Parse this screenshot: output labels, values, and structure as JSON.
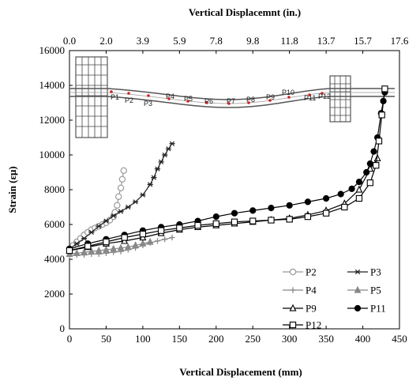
{
  "chart_data": {
    "type": "line",
    "title": "",
    "xlabel": "Vertical Displacement (mm)",
    "x2label": "Vertical Displacemnt  (in.)",
    "ylabel": "Strain (εμ)",
    "xlim": [
      0,
      450
    ],
    "ylim": [
      0,
      16000
    ],
    "xticks": [
      "0",
      "50",
      "100",
      "150",
      "200",
      "250",
      "300",
      "350",
      "400",
      "450"
    ],
    "yticks": [
      "0",
      "2000",
      "4000",
      "6000",
      "8000",
      "10000",
      "12000",
      "14000",
      "16000"
    ],
    "x2ticks": [
      "0.0",
      "2.0",
      "3.9",
      "5.9",
      "7.8",
      "9.8",
      "11.8",
      "13.7",
      "15.7",
      "17.6"
    ],
    "grid": false,
    "legend_position": "bottom-right",
    "series": [
      {
        "name": "P2",
        "marker": "circle-open",
        "color": "#999999",
        "x": [
          0,
          5,
          10,
          15,
          20,
          25,
          30,
          35,
          40,
          45,
          50,
          55,
          60,
          62,
          65,
          67,
          70,
          72,
          74
        ],
        "y": [
          4600,
          4800,
          5000,
          5200,
          5400,
          5550,
          5700,
          5800,
          5900,
          6000,
          6100,
          6250,
          6450,
          6700,
          7100,
          7600,
          8100,
          8600,
          9100
        ]
      },
      {
        "name": "P3",
        "marker": "star",
        "color": "#222222",
        "x": [
          0,
          10,
          20,
          30,
          40,
          50,
          60,
          70,
          80,
          90,
          100,
          110,
          115,
          120,
          125,
          130,
          135,
          140
        ],
        "y": [
          4600,
          4900,
          5200,
          5550,
          5900,
          6200,
          6500,
          6750,
          7000,
          7300,
          7700,
          8300,
          8700,
          9200,
          9600,
          10000,
          10350,
          10650
        ]
      },
      {
        "name": "P4",
        "marker": "plus",
        "color": "#888888",
        "x": [
          0,
          10,
          20,
          30,
          40,
          50,
          60,
          70,
          80,
          90,
          100,
          110,
          120,
          130,
          140
        ],
        "y": [
          4200,
          4250,
          4250,
          4300,
          4300,
          4350,
          4400,
          4450,
          4550,
          4650,
          4800,
          4950,
          5050,
          5150,
          5250
        ]
      },
      {
        "name": "P5",
        "marker": "triangle-filled",
        "color": "#888888",
        "x": [
          0,
          10,
          20,
          30,
          40,
          50,
          60,
          70,
          80,
          90,
          100,
          110
        ],
        "y": [
          4300,
          4350,
          4400,
          4450,
          4500,
          4550,
          4600,
          4650,
          4700,
          4800,
          4900,
          5000
        ]
      },
      {
        "name": "P9",
        "marker": "triangle-open",
        "color": "#000000",
        "x": [
          0,
          25,
          50,
          75,
          100,
          125,
          150,
          175,
          200,
          225,
          250,
          275,
          300,
          325,
          350,
          375,
          395,
          410,
          420
        ],
        "y": [
          4500,
          4700,
          4900,
          5050,
          5250,
          5500,
          5700,
          5850,
          5950,
          6050,
          6150,
          6250,
          6350,
          6550,
          6800,
          7200,
          8000,
          9200,
          9800
        ]
      },
      {
        "name": "P11",
        "marker": "circle-filled",
        "color": "#000000",
        "x": [
          0,
          25,
          50,
          75,
          100,
          125,
          150,
          175,
          200,
          225,
          250,
          275,
          300,
          325,
          350,
          370,
          385,
          395,
          405,
          410,
          415,
          420,
          425,
          428,
          430
        ],
        "y": [
          4600,
          4900,
          5150,
          5400,
          5650,
          5850,
          6000,
          6200,
          6450,
          6650,
          6800,
          6950,
          7100,
          7300,
          7500,
          7750,
          8050,
          8450,
          9000,
          9500,
          10200,
          11000,
          12400,
          13100,
          13600
        ]
      },
      {
        "name": "P12",
        "marker": "square-open",
        "color": "#000000",
        "x": [
          0,
          25,
          50,
          75,
          100,
          125,
          150,
          175,
          200,
          225,
          250,
          275,
          300,
          325,
          350,
          375,
          395,
          410,
          418,
          422,
          426,
          430
        ],
        "y": [
          4500,
          4750,
          5000,
          5250,
          5450,
          5650,
          5800,
          5950,
          6050,
          6150,
          6200,
          6250,
          6300,
          6450,
          6650,
          7000,
          7500,
          8400,
          9400,
          10800,
          12300,
          13800
        ]
      }
    ],
    "inset_labels": [
      "P1",
      "P2",
      "P3",
      "P4",
      "P5",
      "P6",
      "P7",
      "P8",
      "P9",
      "P10",
      "P11",
      "P12"
    ]
  }
}
